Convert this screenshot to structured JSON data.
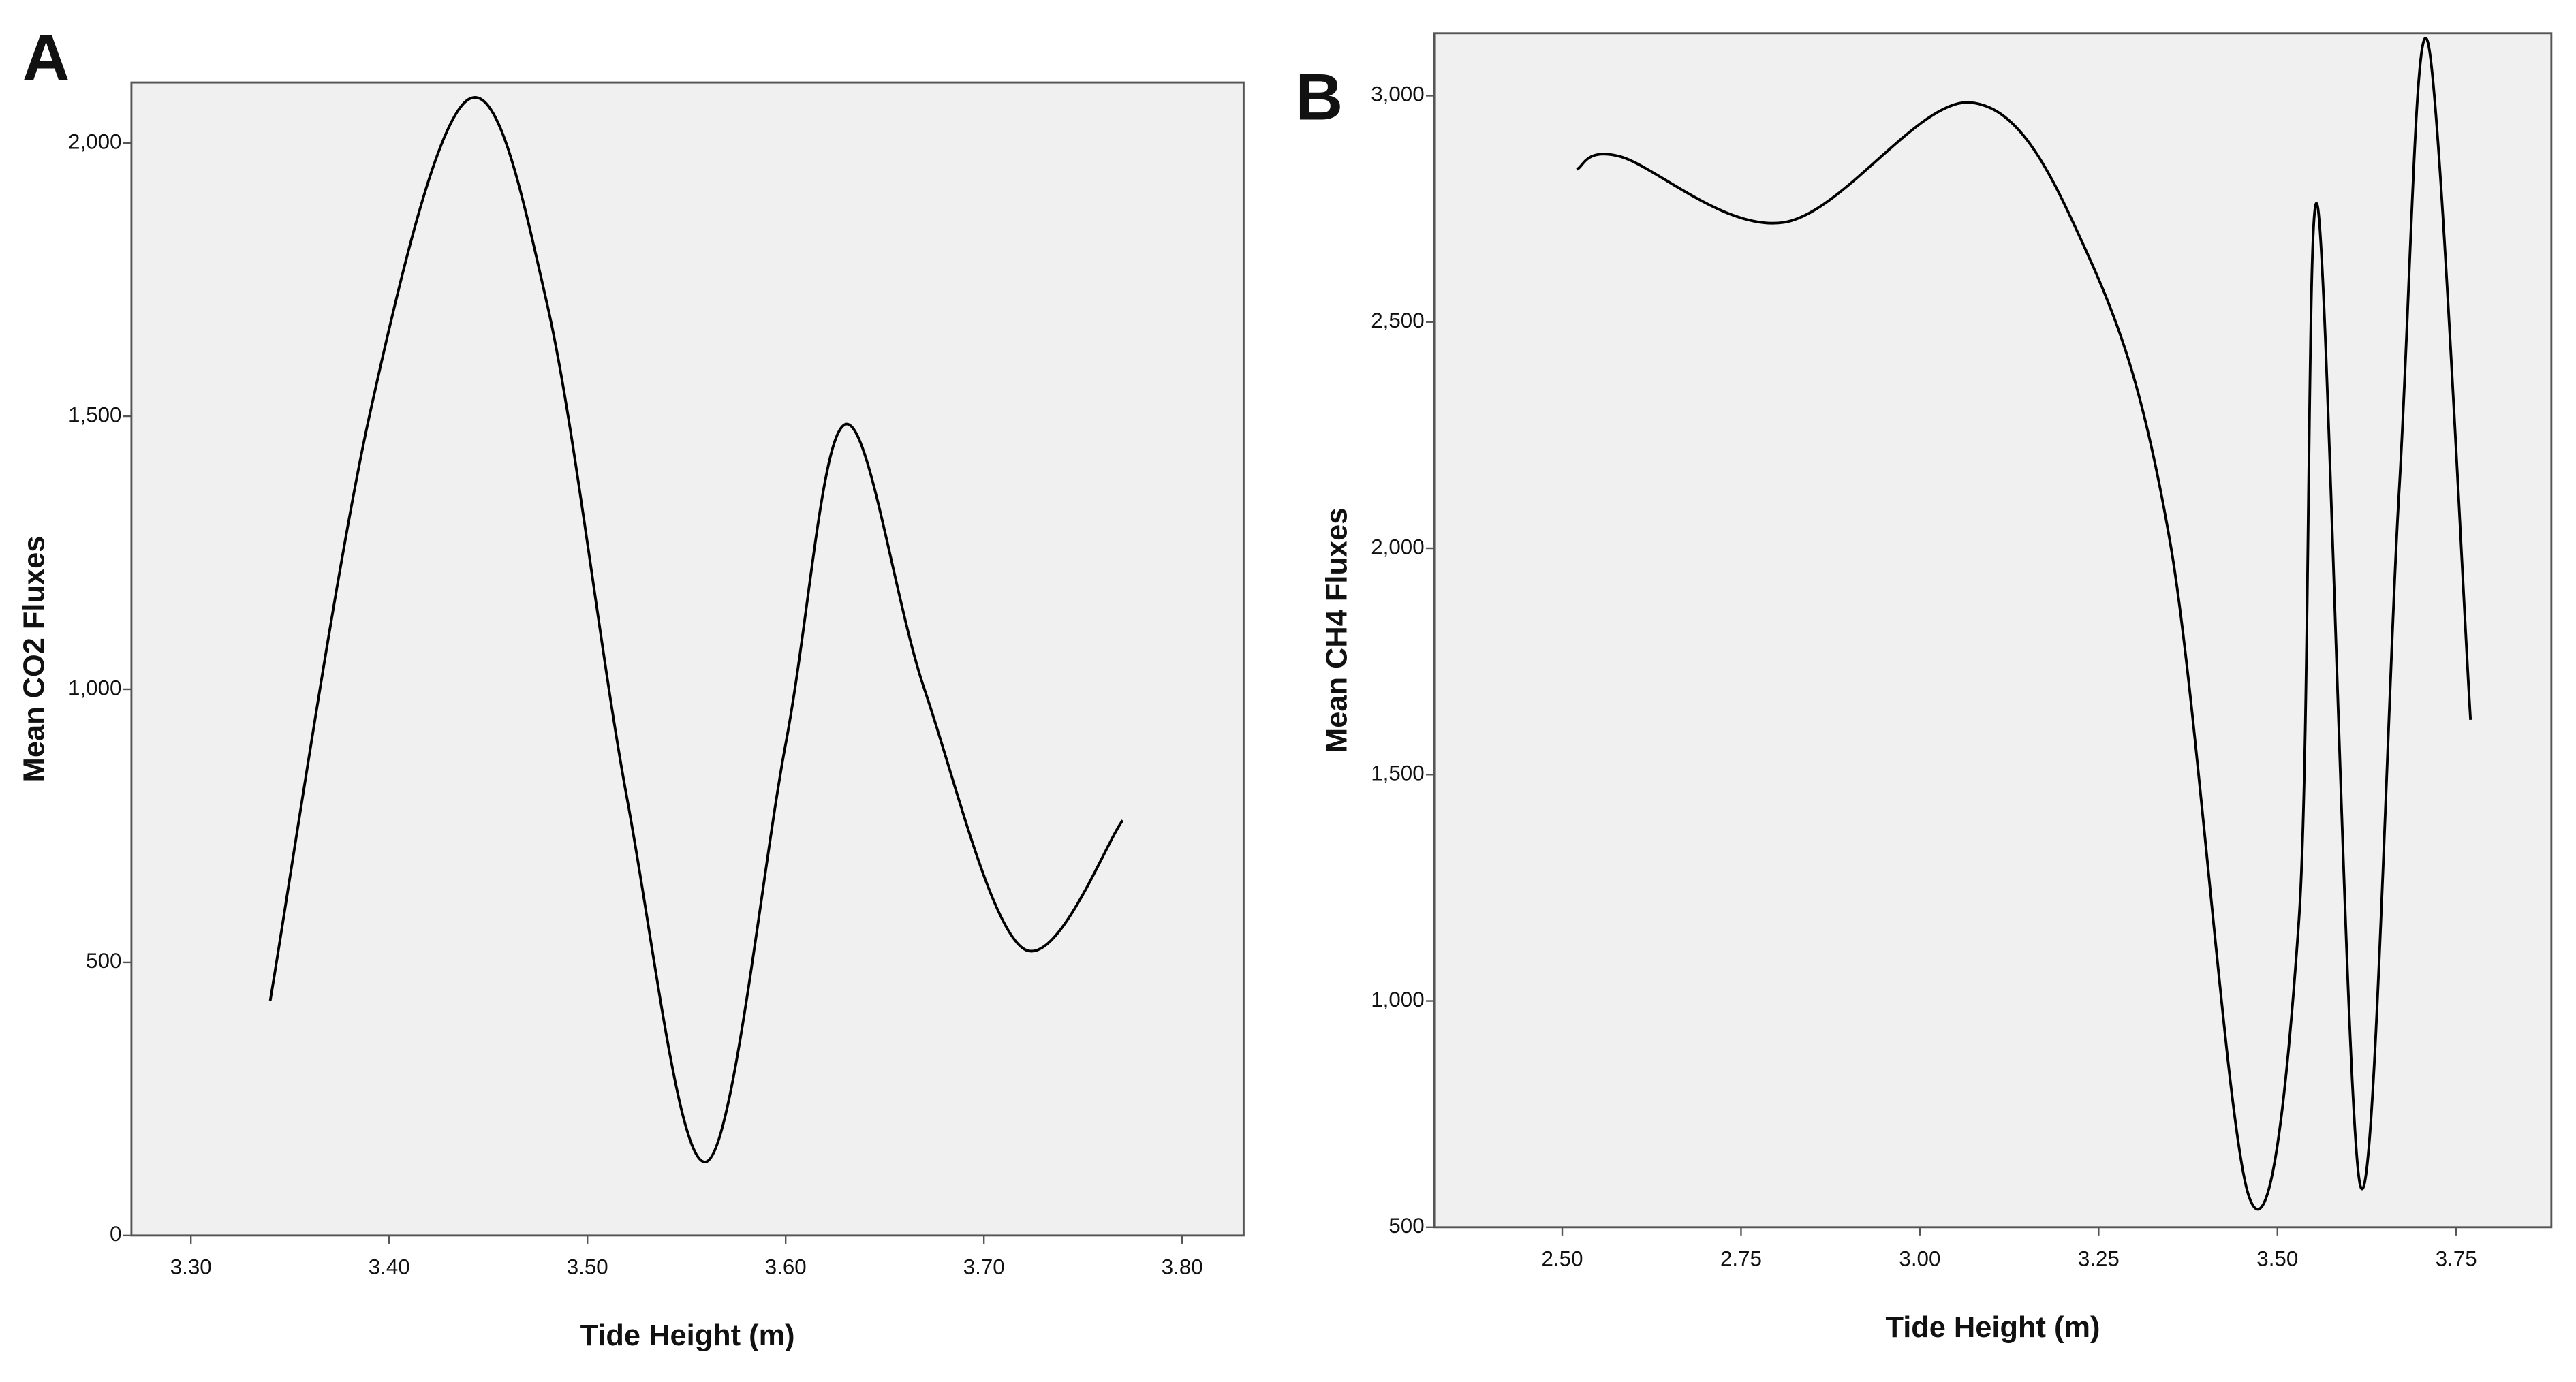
{
  "chart_data": [
    {
      "type": "line",
      "label": "A",
      "x_label": "Tide Height (m)",
      "y_label": "Mean CO2 Fluxes",
      "x": [
        3.34,
        3.39,
        3.44,
        3.48,
        3.52,
        3.56,
        3.6,
        3.63,
        3.67,
        3.72,
        3.77
      ],
      "series": [
        {
          "color": "#000000",
          "values": [
            430,
            1500,
            2080,
            1700,
            800,
            135,
            900,
            1485,
            1000,
            525,
            760
          ]
        }
      ],
      "xlim": [
        3.27,
        3.831
      ],
      "ylim": [
        0,
        2111
      ],
      "xticks": [
        {
          "value": 3.3,
          "label": "3.30"
        },
        {
          "value": 3.4,
          "label": "3.40"
        },
        {
          "value": 3.5,
          "label": "3.50"
        },
        {
          "value": 3.6,
          "label": "3.60"
        },
        {
          "value": 3.7,
          "label": "3.70"
        },
        {
          "value": 3.8,
          "label": "3.80"
        }
      ],
      "yticks": [
        0,
        500,
        {
          "value": 1000,
          "label": "1,000"
        },
        {
          "value": 1500,
          "label": "1,500"
        },
        {
          "value": 2000,
          "label": "2,000"
        }
      ],
      "background": "#f0f0f0"
    },
    {
      "type": "line",
      "label": "B",
      "x_label": "Tide Height (m)",
      "y_label": "Mean CH4 Fluxes",
      "x": [
        2.52,
        2.58,
        2.81,
        3.07,
        3.23,
        3.35,
        3.46,
        3.53,
        3.556,
        3.616,
        3.67,
        3.71,
        3.77
      ],
      "series": [
        {
          "color": "#000000",
          "values": [
            2837,
            2866,
            2720,
            2985,
            2666,
            2013,
            569,
            1178,
            2757,
            591,
            2122,
            3120,
            1621
          ]
        }
      ],
      "xlim": [
        2.321,
        3.883
      ],
      "ylim": [
        500,
        3138
      ],
      "xticks": [
        {
          "value": 2.5,
          "label": "2.50"
        },
        2.75,
        {
          "value": 3.0,
          "label": "3.00"
        },
        3.25,
        {
          "value": 3.5,
          "label": "3.50"
        },
        3.75
      ],
      "yticks": [
        500,
        {
          "value": 1000,
          "label": "1,000"
        },
        {
          "value": 1500,
          "label": "1,500"
        },
        {
          "value": 2000,
          "label": "2,000"
        },
        {
          "value": 2500,
          "label": "2,500"
        },
        {
          "value": 3000,
          "label": "3,000"
        }
      ],
      "background": "#f0f0f0"
    }
  ]
}
